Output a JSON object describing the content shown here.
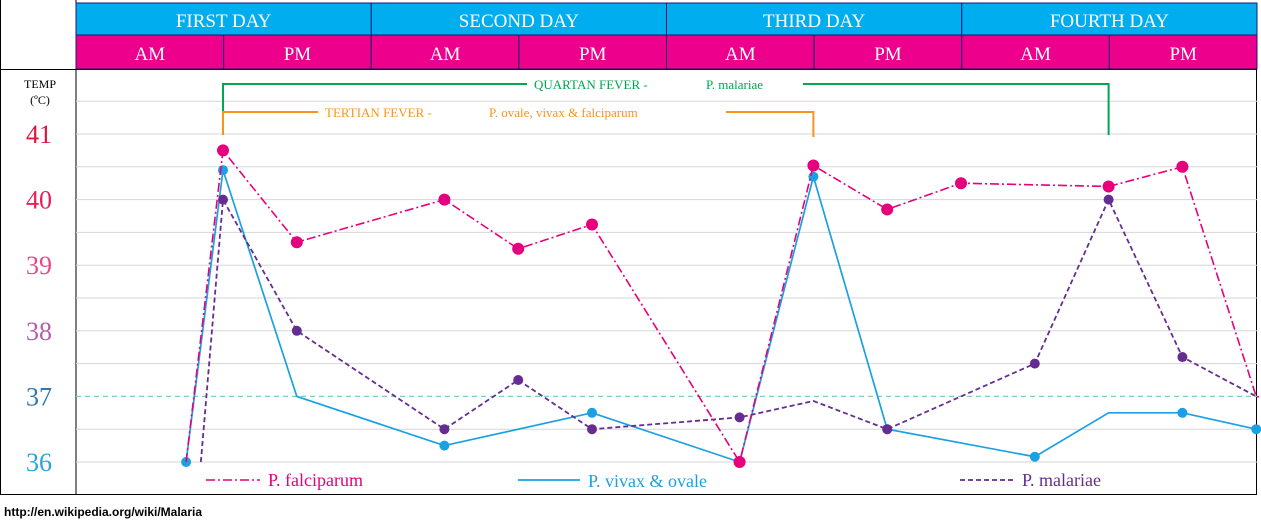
{
  "chart_data": {
    "type": "line",
    "header": {
      "days": [
        "FIRST DAY",
        "SECOND DAY",
        "THIRD DAY",
        "FOURTH DAY"
      ],
      "halves": [
        "AM",
        "PM",
        "AM",
        "PM",
        "AM",
        "PM",
        "AM",
        "PM"
      ]
    },
    "ylabel": "TEMP",
    "yunit": "(ºC)",
    "yticks": [
      {
        "label": "41",
        "value": 41,
        "color": "#e0163f"
      },
      {
        "label": "40",
        "value": 40,
        "color": "#e8205a"
      },
      {
        "label": "39",
        "value": 39,
        "color": "#e8478a"
      },
      {
        "label": "38",
        "value": 38,
        "color": "#b55ea8"
      },
      {
        "label": "37",
        "value": 37,
        "color": "#2e78b5"
      },
      {
        "label": "36",
        "value": 36,
        "color": "#2aa3d8"
      }
    ],
    "ylim": [
      36,
      41.5
    ],
    "xlim": [
      -0.35,
      8
    ],
    "normal_temp": 37,
    "colors": {
      "header_day": "#00aeef",
      "header_half": "#ec008c",
      "falciparum": "#e6007e",
      "vivax": "#1ba1e2",
      "malariae": "#662d91",
      "quartan": "#00a651",
      "tertian": "#f7941d",
      "normal_line": "#7fcfbf"
    },
    "series": [
      {
        "name": "P. falciparum",
        "key": "falciparum",
        "x": [
          -0.25,
          0,
          0.5,
          1.5,
          2,
          2.5,
          3.5,
          4,
          4.5,
          5,
          6,
          6.5,
          7,
          8
        ],
        "y": [
          36.0,
          40.75,
          39.35,
          40.0,
          39.25,
          39.62,
          36.0,
          40.52,
          39.85,
          40.25,
          40.2,
          40.5,
          37.0,
          36.7
        ],
        "markers": [
          false,
          true,
          true,
          true,
          true,
          true,
          true,
          true,
          true,
          true,
          true,
          true,
          false,
          false
        ]
      },
      {
        "name": "P. vivax & ovale",
        "key": "vivax",
        "x": [
          -0.25,
          0,
          0.5,
          1.5,
          2.5,
          3.5,
          4,
          4.5,
          5.5,
          6,
          6.5,
          7
        ],
        "y": [
          36.0,
          40.45,
          37.0,
          36.25,
          36.75,
          36.0,
          40.35,
          36.5,
          36.08,
          36.75,
          36.75,
          36.5
        ],
        "markers": [
          true,
          true,
          false,
          true,
          true,
          true,
          true,
          true,
          true,
          false,
          true,
          true
        ]
      },
      {
        "name": "P. malariae",
        "key": "malariae",
        "x": [
          -0.15,
          0,
          0.5,
          1.5,
          2,
          2.5,
          3.5,
          4,
          4.5,
          5.5,
          6,
          6.5,
          7
        ],
        "y": [
          36.0,
          40.0,
          38.0,
          36.5,
          37.25,
          36.5,
          36.68,
          36.93,
          36.5,
          37.5,
          40.0,
          37.6,
          37.0
        ],
        "markers": [
          false,
          true,
          true,
          true,
          true,
          true,
          true,
          false,
          true,
          true,
          true,
          true,
          false
        ]
      }
    ],
    "annotations": {
      "quartan_label": "QUARTAN FEVER -",
      "quartan_species": "P. malariae",
      "tertian_label": "TERTIAN FEVER -",
      "tertian_species": "P. ovale, vivax & falciparum",
      "quartan_x": [
        0,
        6
      ],
      "tertian_x": [
        0,
        4
      ]
    },
    "source": "http://en.wikipedia.org/wiki/Malaria"
  }
}
